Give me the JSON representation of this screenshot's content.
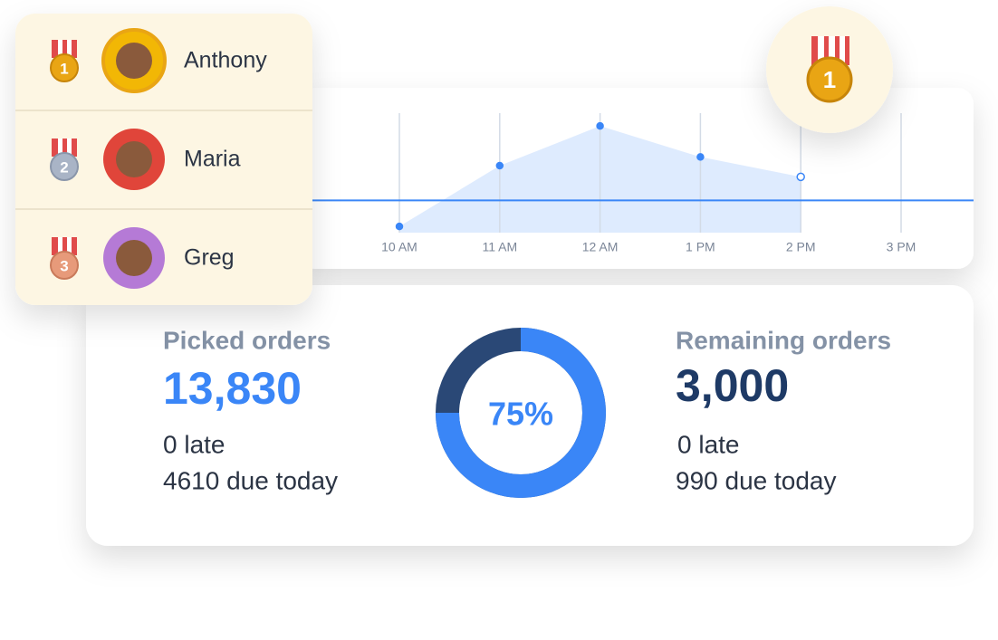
{
  "leaderboard": [
    {
      "rank": "1",
      "name": "Anthony"
    },
    {
      "rank": "2",
      "name": "Maria"
    },
    {
      "rank": "3",
      "name": "Greg"
    }
  ],
  "badge": {
    "rank": "1"
  },
  "chart_data": {
    "type": "area",
    "categories": [
      "10 AM",
      "11 AM",
      "12 AM",
      "1 PM",
      "2 PM",
      "3 PM"
    ],
    "values": [
      5,
      54,
      86,
      61,
      45,
      null
    ],
    "target": 26,
    "ylim": [
      0,
      100
    ],
    "color": "#3a86f7"
  },
  "picked": {
    "label": "Picked orders",
    "value": "13,830",
    "late": "0 late",
    "due": "4610 due today"
  },
  "remaining": {
    "label": "Remaining orders",
    "value": "3,000",
    "late": "0 late",
    "due": "990 due today"
  },
  "donut": {
    "value": 75,
    "label": "75%"
  }
}
